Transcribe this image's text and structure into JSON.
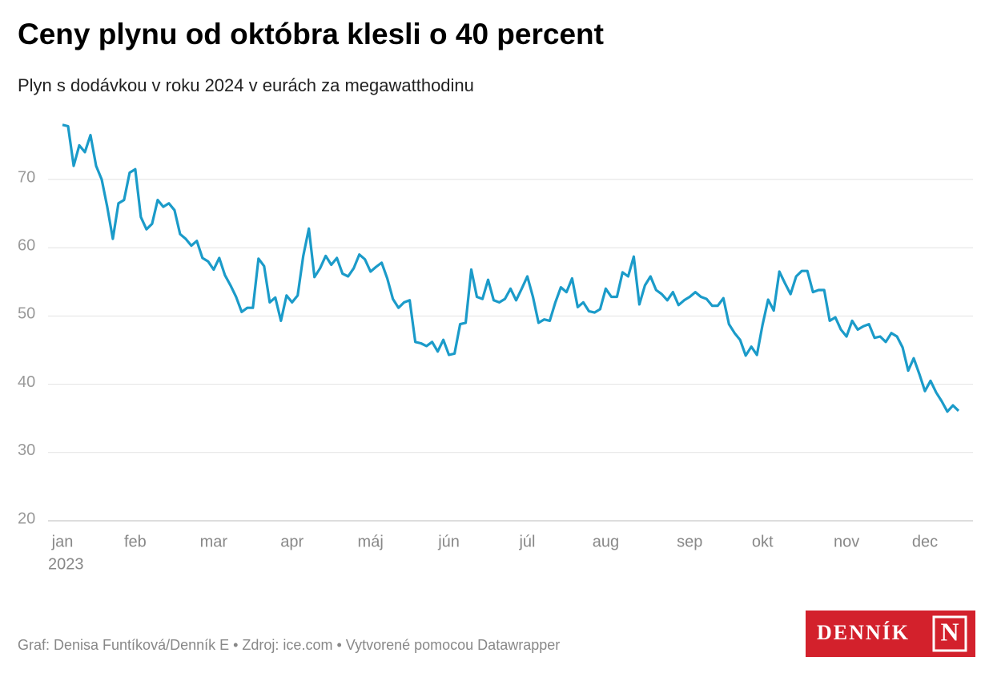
{
  "chart_data": {
    "type": "line",
    "title": "Ceny plynu od októbra klesli o 40 percent",
    "subtitle": "Plyn s dodávkou v roku 2024 v eurách za megawatthodinu",
    "categories": [
      "jan",
      null,
      null,
      null,
      null,
      null,
      null,
      null,
      null,
      null,
      null,
      null,
      null,
      "feb",
      null,
      null,
      null,
      null,
      null,
      null,
      null,
      null,
      null,
      null,
      null,
      null,
      null,
      "mar",
      null,
      null,
      null,
      null,
      null,
      null,
      null,
      null,
      null,
      null,
      null,
      null,
      null,
      "apr",
      null,
      null,
      null,
      null,
      null,
      null,
      null,
      null,
      null,
      null,
      null,
      null,
      null,
      "máj",
      null,
      null,
      null,
      null,
      null,
      null,
      null,
      null,
      null,
      null,
      null,
      null,
      null,
      "jún",
      null,
      null,
      null,
      null,
      null,
      null,
      null,
      null,
      null,
      null,
      null,
      null,
      null,
      "júl",
      null,
      null,
      null,
      null,
      null,
      null,
      null,
      null,
      null,
      null,
      null,
      null,
      null,
      "aug",
      null,
      null,
      null,
      null,
      null,
      null,
      null,
      null,
      null,
      null,
      null,
      null,
      null,
      null,
      "sep",
      null,
      null,
      null,
      null,
      null,
      null,
      null,
      null,
      null,
      null,
      null,
      null,
      "okt",
      null,
      null,
      null,
      null,
      null,
      null,
      null,
      null,
      null,
      null,
      null,
      null,
      null,
      null,
      "nov",
      null,
      null,
      null,
      null,
      null,
      null,
      null,
      null,
      null,
      null,
      null,
      null,
      null,
      "dec",
      null,
      null,
      null,
      null,
      null,
      null
    ],
    "x_sublabel": "2023",
    "series": [
      {
        "name": "Plyn",
        "color": "#1b9bc9",
        "values": [
          78,
          77.8,
          72,
          75,
          74,
          76.5,
          72,
          70,
          66,
          61.3,
          66.5,
          67,
          71,
          71.5,
          64.5,
          62.7,
          63.5,
          67,
          66,
          66.5,
          65.5,
          62,
          61.3,
          60.3,
          61,
          58.5,
          58,
          56.8,
          58.5,
          56,
          54.5,
          52.8,
          50.6,
          51.2,
          51.2,
          58.4,
          57.3,
          52,
          52.7,
          49.3,
          53,
          52,
          53,
          58.8,
          62.8,
          55.7,
          57,
          58.8,
          57.5,
          58.5,
          56.2,
          55.8,
          57,
          59,
          58.3,
          56.5,
          57.2,
          57.8,
          55.5,
          52.5,
          51.2,
          52,
          52.3,
          46.2,
          46,
          45.6,
          46.2,
          44.8,
          46.5,
          44.3,
          44.5,
          48.8,
          49,
          56.8,
          52.8,
          52.5,
          55.3,
          52.3,
          52,
          52.5,
          54,
          52.3,
          54,
          55.8,
          52.8,
          49,
          49.5,
          49.3,
          52,
          54.2,
          53.5,
          55.5,
          51.3,
          52,
          50.7,
          50.5,
          51,
          54,
          52.8,
          52.8,
          56.4,
          55.8,
          58.7,
          51.7,
          54.5,
          55.8,
          53.8,
          53.2,
          52.3,
          53.5,
          51.6,
          52.3,
          52.8,
          53.5,
          52.8,
          52.5,
          51.5,
          51.5,
          52.6,
          48.8,
          47.5,
          46.5,
          44.2,
          45.5,
          44.3,
          48.7,
          52.4,
          50.8,
          56.5,
          54.8,
          53.2,
          55.8,
          56.6,
          56.6,
          53.5,
          53.8,
          53.8,
          49.3,
          49.8,
          48,
          47,
          49.3,
          48,
          48.5,
          48.8,
          46.8,
          47,
          46.2,
          47.5,
          47,
          45.4,
          42,
          43.8,
          41.5,
          39,
          40.5,
          38.8,
          37.5,
          36,
          36.9,
          36.1
        ]
      }
    ],
    "ylim": [
      20,
      80
    ],
    "yticks": [
      20,
      30,
      40,
      50,
      60,
      70
    ],
    "grid": true,
    "source": "Graf: Denisa Funtíková/Denník E • Zdroj: ice.com • Vytvorené pomocou Datawrapper",
    "logo": "DENNÍK",
    "logo_mark": "N"
  }
}
